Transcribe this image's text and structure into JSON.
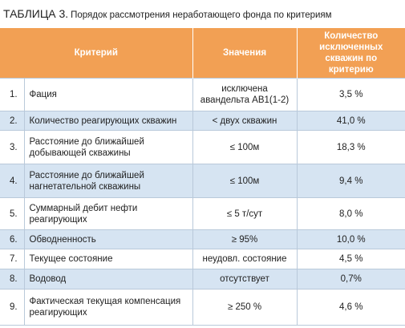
{
  "header": {
    "label": "ТАБЛИЦА 3.",
    "title": "Порядок рассмотрения неработающего фонда по критериям"
  },
  "table": {
    "columns": [
      "Критерий",
      "Значения",
      "Количество исключенных скважин по критерию"
    ],
    "rows": [
      [
        "1.",
        "Фация",
        "исключена авандельта АВ1(1-2)",
        "3,5 %"
      ],
      [
        "2.",
        "Количество реагирующих скважин",
        "< двух скважин",
        "41,0 %"
      ],
      [
        "3.",
        "Расстояние до ближайшей добывающей скважины",
        "≤ 100м",
        "18,3 %"
      ],
      [
        "4.",
        "Расстояние до ближайшей нагнетательной скважины",
        "≤ 100м",
        "9,4 %"
      ],
      [
        "5.",
        "Суммарный дебит нефти реагирующих",
        "≤ 5 т/сут",
        "8,0 %"
      ],
      [
        "6.",
        "Обводненность",
        "≥ 95%",
        "10,0 %"
      ],
      [
        "7.",
        "Текущее состояние",
        "неудовл. состояние",
        "4,5 %"
      ],
      [
        "8.",
        "Водовод",
        "отсутствует",
        "0,7%"
      ],
      [
        "9.",
        "Фактическая текущая компенсация реагирующих",
        "≥ 250 %",
        "4,6 %"
      ]
    ]
  }
}
